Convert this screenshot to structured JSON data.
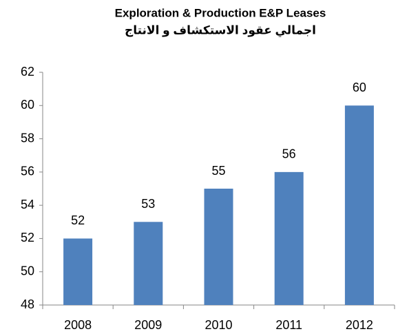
{
  "chart_data": {
    "type": "bar",
    "title": "Exploration & Production E&P Leases",
    "subtitle": "اجمالي عقود الاستكشاف و الانتاج",
    "categories": [
      "2008",
      "2009",
      "2010",
      "2011",
      "2012"
    ],
    "values": [
      52,
      53,
      55,
      56,
      60
    ],
    "color": "#4f81bd",
    "ylim": [
      48,
      62
    ],
    "yticks": [
      48,
      50,
      52,
      54,
      56,
      58,
      60,
      62
    ],
    "grid": false
  }
}
